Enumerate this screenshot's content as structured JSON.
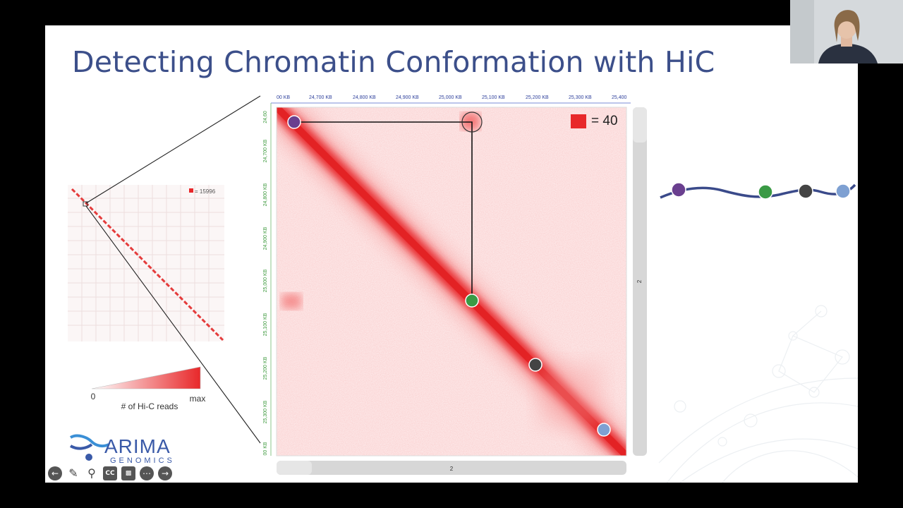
{
  "slide": {
    "title": "Detecting Chromatin Conformation with HiC"
  },
  "overview_map": {
    "legend_value": "= 15996"
  },
  "zoom_map": {
    "legend_value": "= 40",
    "top_axis_ticks": [
      "00 KB",
      "24,700 KB",
      "24,800 KB",
      "24,900 KB",
      "25,000 KB",
      "25,100 KB",
      "25,200 KB",
      "25,300 KB",
      "25,400"
    ],
    "left_axis_ticks": [
      "24,60",
      "24,700 KB",
      "24,800 KB",
      "24,900 KB",
      "25,000 KB",
      "25,100 KB",
      "25,200 KB",
      "25,300 KB",
      "00 KB"
    ],
    "bottom_scroll_label": "2",
    "right_scroll_label": "2"
  },
  "color_scale": {
    "min_label": "0",
    "max_label": "max",
    "caption": "# of Hi-C reads"
  },
  "logo": {
    "name": "ARIMA",
    "sub": "GENOMICS"
  },
  "colors": {
    "title": "#3c4f8a",
    "heat": "#e8282a",
    "purple": "#6a3f8f",
    "green": "#3a9a45",
    "dark": "#444444",
    "blue": "#7ea0d2",
    "strand": "#3a4a8a"
  },
  "toolbar": {
    "items": [
      "back-icon",
      "pen-icon",
      "zoom-icon",
      "cc-icon",
      "video-off-icon",
      "more-icon",
      "forward-icon"
    ]
  }
}
